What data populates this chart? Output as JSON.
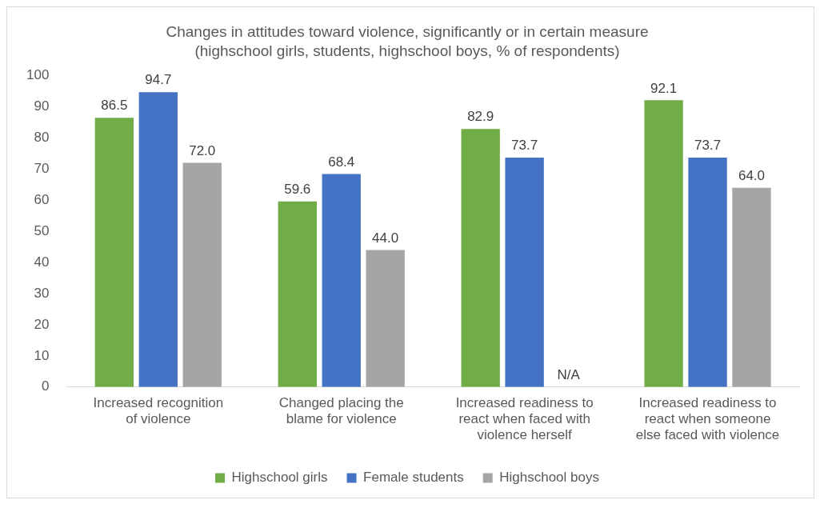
{
  "chart_data": {
    "type": "bar",
    "title": "Changes in attitudes toward violence, significantly or in certain measure",
    "subtitle": "(highschool girls, students, highschool boys, % of respondents)",
    "categories": [
      "Increased recognition of violence",
      "Changed placing the blame for violence",
      "Increased readiness to react when faced with violence herself",
      "Increased readiness to react when someone else faced with violence"
    ],
    "series": [
      {
        "name": "Highschool girls",
        "color": "#70ad47",
        "values": [
          86.5,
          59.6,
          82.9,
          92.1
        ],
        "value_labels": [
          "86.5",
          "59.6",
          "82.9",
          "92.1"
        ]
      },
      {
        "name": "Female students",
        "color": "#4472c4",
        "values": [
          94.7,
          68.4,
          73.7,
          73.7
        ],
        "value_labels": [
          "94.7",
          "68.4",
          "73.7",
          "73.7"
        ]
      },
      {
        "name": "Highschool boys",
        "color": "#a5a5a5",
        "values": [
          72.0,
          44.0,
          null,
          64.0
        ],
        "value_labels": [
          "72.0",
          "44.0",
          "N/A",
          "64.0"
        ]
      }
    ],
    "ylim": [
      0,
      100
    ],
    "yticks": [
      0,
      10,
      20,
      30,
      40,
      50,
      60,
      70,
      80,
      90,
      100
    ],
    "grid": false,
    "legend": "bottom"
  }
}
